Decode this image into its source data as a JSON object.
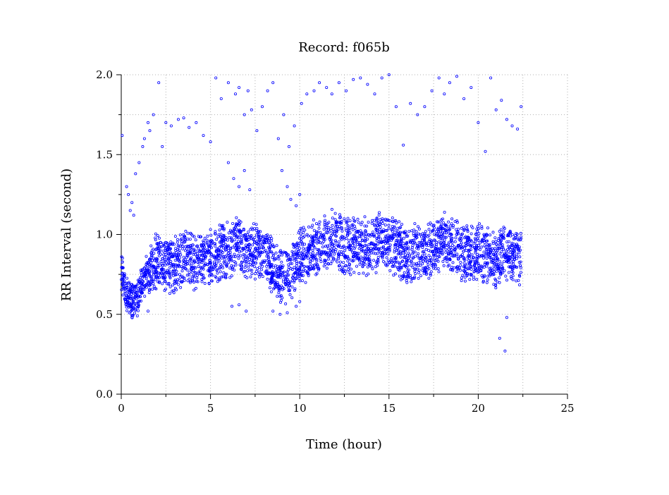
{
  "chart_data": {
    "type": "scatter",
    "title": "Record:  f065b",
    "xlabel": "Time (hour)",
    "ylabel": "RR Interval (second)",
    "xlim": [
      0,
      25
    ],
    "ylim": [
      0.0,
      2.0
    ],
    "x_ticks": [
      0,
      5,
      10,
      15,
      20,
      25
    ],
    "x_tick_labels": [
      "0",
      "5",
      "10",
      "15",
      "20",
      "25"
    ],
    "y_ticks": [
      0.0,
      0.5,
      1.0,
      1.5,
      2.0
    ],
    "y_tick_labels": [
      "0.0",
      "0.5",
      "1.0",
      "1.5",
      "2.0"
    ],
    "grid": true,
    "marker": "hollow-circle",
    "series_color": "#0000ff",
    "series": [
      {
        "baseline": [
          [
            0.0,
            0.78
          ],
          [
            0.3,
            0.63
          ],
          [
            0.6,
            0.58
          ],
          [
            0.9,
            0.62
          ],
          [
            1.2,
            0.7
          ],
          [
            1.5,
            0.76
          ],
          [
            2.0,
            0.84
          ],
          [
            2.5,
            0.82
          ],
          [
            3.0,
            0.8
          ],
          [
            3.5,
            0.84
          ],
          [
            4.0,
            0.84
          ],
          [
            4.5,
            0.84
          ],
          [
            5.0,
            0.85
          ],
          [
            5.5,
            0.88
          ],
          [
            6.0,
            0.9
          ],
          [
            6.5,
            0.92
          ],
          [
            7.0,
            0.9
          ],
          [
            7.5,
            0.9
          ],
          [
            8.0,
            0.88
          ],
          [
            8.5,
            0.8
          ],
          [
            9.0,
            0.73
          ],
          [
            9.5,
            0.76
          ],
          [
            10.0,
            0.86
          ],
          [
            10.5,
            0.88
          ],
          [
            11.0,
            0.92
          ],
          [
            11.5,
            0.97
          ],
          [
            12.0,
            0.98
          ],
          [
            12.5,
            0.92
          ],
          [
            13.0,
            0.95
          ],
          [
            13.5,
            0.93
          ],
          [
            14.0,
            0.92
          ],
          [
            14.5,
            0.96
          ],
          [
            15.0,
            0.95
          ],
          [
            15.5,
            0.92
          ],
          [
            16.0,
            0.84
          ],
          [
            16.5,
            0.9
          ],
          [
            17.0,
            0.88
          ],
          [
            17.5,
            0.92
          ],
          [
            18.0,
            0.96
          ],
          [
            18.5,
            0.93
          ],
          [
            19.0,
            0.9
          ],
          [
            19.5,
            0.88
          ],
          [
            20.0,
            0.9
          ],
          [
            20.5,
            0.86
          ],
          [
            21.0,
            0.85
          ],
          [
            21.5,
            0.88
          ],
          [
            22.0,
            0.86
          ],
          [
            22.4,
            0.85
          ]
        ],
        "outliers": [
          [
            0.05,
            1.62
          ],
          [
            0.3,
            1.3
          ],
          [
            0.4,
            1.25
          ],
          [
            0.5,
            1.15
          ],
          [
            0.6,
            1.2
          ],
          [
            0.7,
            1.12
          ],
          [
            0.8,
            1.38
          ],
          [
            1.0,
            1.45
          ],
          [
            1.2,
            1.55
          ],
          [
            1.3,
            1.6
          ],
          [
            1.5,
            1.7
          ],
          [
            1.6,
            1.65
          ],
          [
            1.8,
            1.75
          ],
          [
            2.1,
            1.95
          ],
          [
            2.3,
            1.55
          ],
          [
            2.5,
            1.7
          ],
          [
            2.8,
            1.68
          ],
          [
            3.2,
            1.72
          ],
          [
            3.5,
            1.73
          ],
          [
            3.8,
            1.67
          ],
          [
            4.2,
            1.7
          ],
          [
            4.6,
            1.62
          ],
          [
            5.0,
            1.58
          ],
          [
            5.3,
            1.98
          ],
          [
            5.6,
            1.85
          ],
          [
            6.0,
            1.95
          ],
          [
            6.4,
            1.88
          ],
          [
            6.6,
            1.92
          ],
          [
            6.9,
            1.75
          ],
          [
            7.1,
            1.9
          ],
          [
            7.3,
            1.78
          ],
          [
            7.6,
            1.65
          ],
          [
            7.9,
            1.8
          ],
          [
            8.2,
            1.9
          ],
          [
            8.5,
            1.95
          ],
          [
            8.8,
            1.6
          ],
          [
            9.1,
            1.75
          ],
          [
            9.4,
            1.55
          ],
          [
            9.7,
            1.68
          ],
          [
            10.1,
            1.82
          ],
          [
            10.4,
            1.88
          ],
          [
            10.8,
            1.9
          ],
          [
            11.1,
            1.95
          ],
          [
            11.5,
            1.92
          ],
          [
            11.8,
            1.88
          ],
          [
            12.2,
            1.95
          ],
          [
            12.6,
            1.9
          ],
          [
            13.0,
            1.97
          ],
          [
            13.4,
            1.98
          ],
          [
            13.8,
            1.94
          ],
          [
            14.2,
            1.88
          ],
          [
            14.6,
            1.98
          ],
          [
            15.0,
            2.0
          ],
          [
            15.4,
            1.8
          ],
          [
            15.8,
            1.56
          ],
          [
            16.2,
            1.82
          ],
          [
            16.6,
            1.75
          ],
          [
            17.0,
            1.8
          ],
          [
            17.4,
            1.9
          ],
          [
            17.8,
            1.98
          ],
          [
            18.1,
            1.88
          ],
          [
            18.4,
            1.95
          ],
          [
            18.8,
            1.99
          ],
          [
            19.2,
            1.85
          ],
          [
            19.6,
            1.92
          ],
          [
            20.0,
            1.7
          ],
          [
            20.4,
            1.52
          ],
          [
            20.7,
            1.98
          ],
          [
            21.0,
            1.78
          ],
          [
            21.3,
            1.84
          ],
          [
            21.6,
            1.72
          ],
          [
            21.9,
            1.68
          ],
          [
            22.2,
            1.66
          ],
          [
            22.4,
            1.8
          ],
          [
            21.2,
            0.35
          ],
          [
            21.5,
            0.27
          ],
          [
            21.6,
            0.48
          ],
          [
            6.0,
            1.45
          ],
          [
            6.3,
            1.35
          ],
          [
            6.6,
            1.3
          ],
          [
            6.9,
            1.4
          ],
          [
            7.2,
            1.28
          ],
          [
            9.0,
            1.4
          ],
          [
            9.3,
            1.3
          ],
          [
            9.5,
            1.22
          ],
          [
            9.8,
            1.18
          ],
          [
            10.0,
            1.25
          ],
          [
            0.6,
            0.48
          ],
          [
            0.9,
            0.49
          ],
          [
            1.5,
            0.52
          ],
          [
            6.2,
            0.55
          ],
          [
            6.6,
            0.56
          ],
          [
            7.0,
            0.52
          ],
          [
            8.5,
            0.52
          ],
          [
            8.9,
            0.5
          ],
          [
            9.3,
            0.51
          ],
          [
            9.8,
            0.55
          ],
          [
            10.0,
            0.58
          ]
        ]
      }
    ]
  }
}
